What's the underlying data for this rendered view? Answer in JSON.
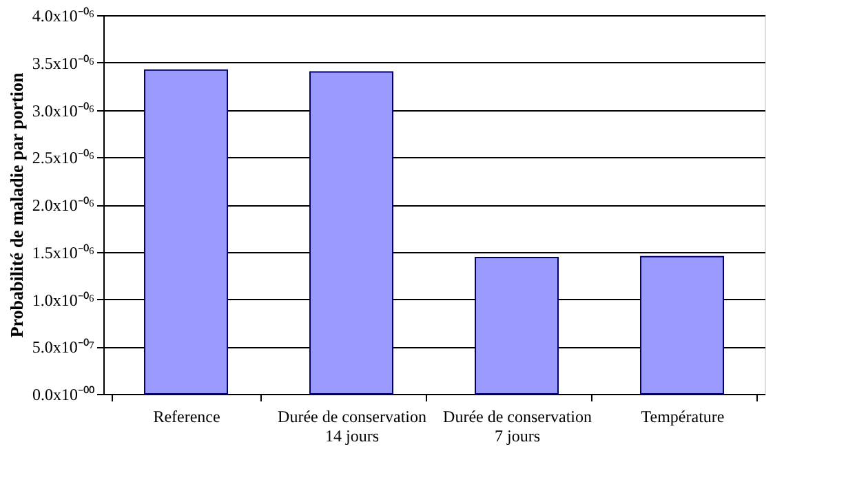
{
  "chart_data": {
    "type": "bar",
    "ylabel": "Probabilité de maladie par portion",
    "categories": [
      "Reference",
      "Durée de conservation 14 jours",
      "Durée de conservation   7 jours",
      "Température"
    ],
    "values": [
      3.42e-06,
      3.4e-06,
      1.44e-06,
      1.45e-06
    ],
    "color": "#9999ff",
    "ylim": [
      0,
      4e-06
    ],
    "yticks": [
      {
        "value": 0,
        "label": "0.0x10⁻⁰⁰"
      },
      {
        "value": 5e-07,
        "label": "5.0x10⁻⁰⁷"
      },
      {
        "value": 1e-06,
        "label": "1.0x10⁻⁰⁶"
      },
      {
        "value": 1.5e-06,
        "label": "1.5x10⁻⁰⁶"
      },
      {
        "value": 2e-06,
        "label": "2.0x10⁻⁰⁶"
      },
      {
        "value": 2.5e-06,
        "label": "2.5x10⁻⁰⁶"
      },
      {
        "value": 3e-06,
        "label": "3.0x10⁻⁰⁶"
      },
      {
        "value": 3.5e-06,
        "label": "3.5x10⁻⁰⁶"
      },
      {
        "value": 4e-06,
        "label": "4.0x10⁻⁰⁶"
      }
    ],
    "grid": "y"
  }
}
